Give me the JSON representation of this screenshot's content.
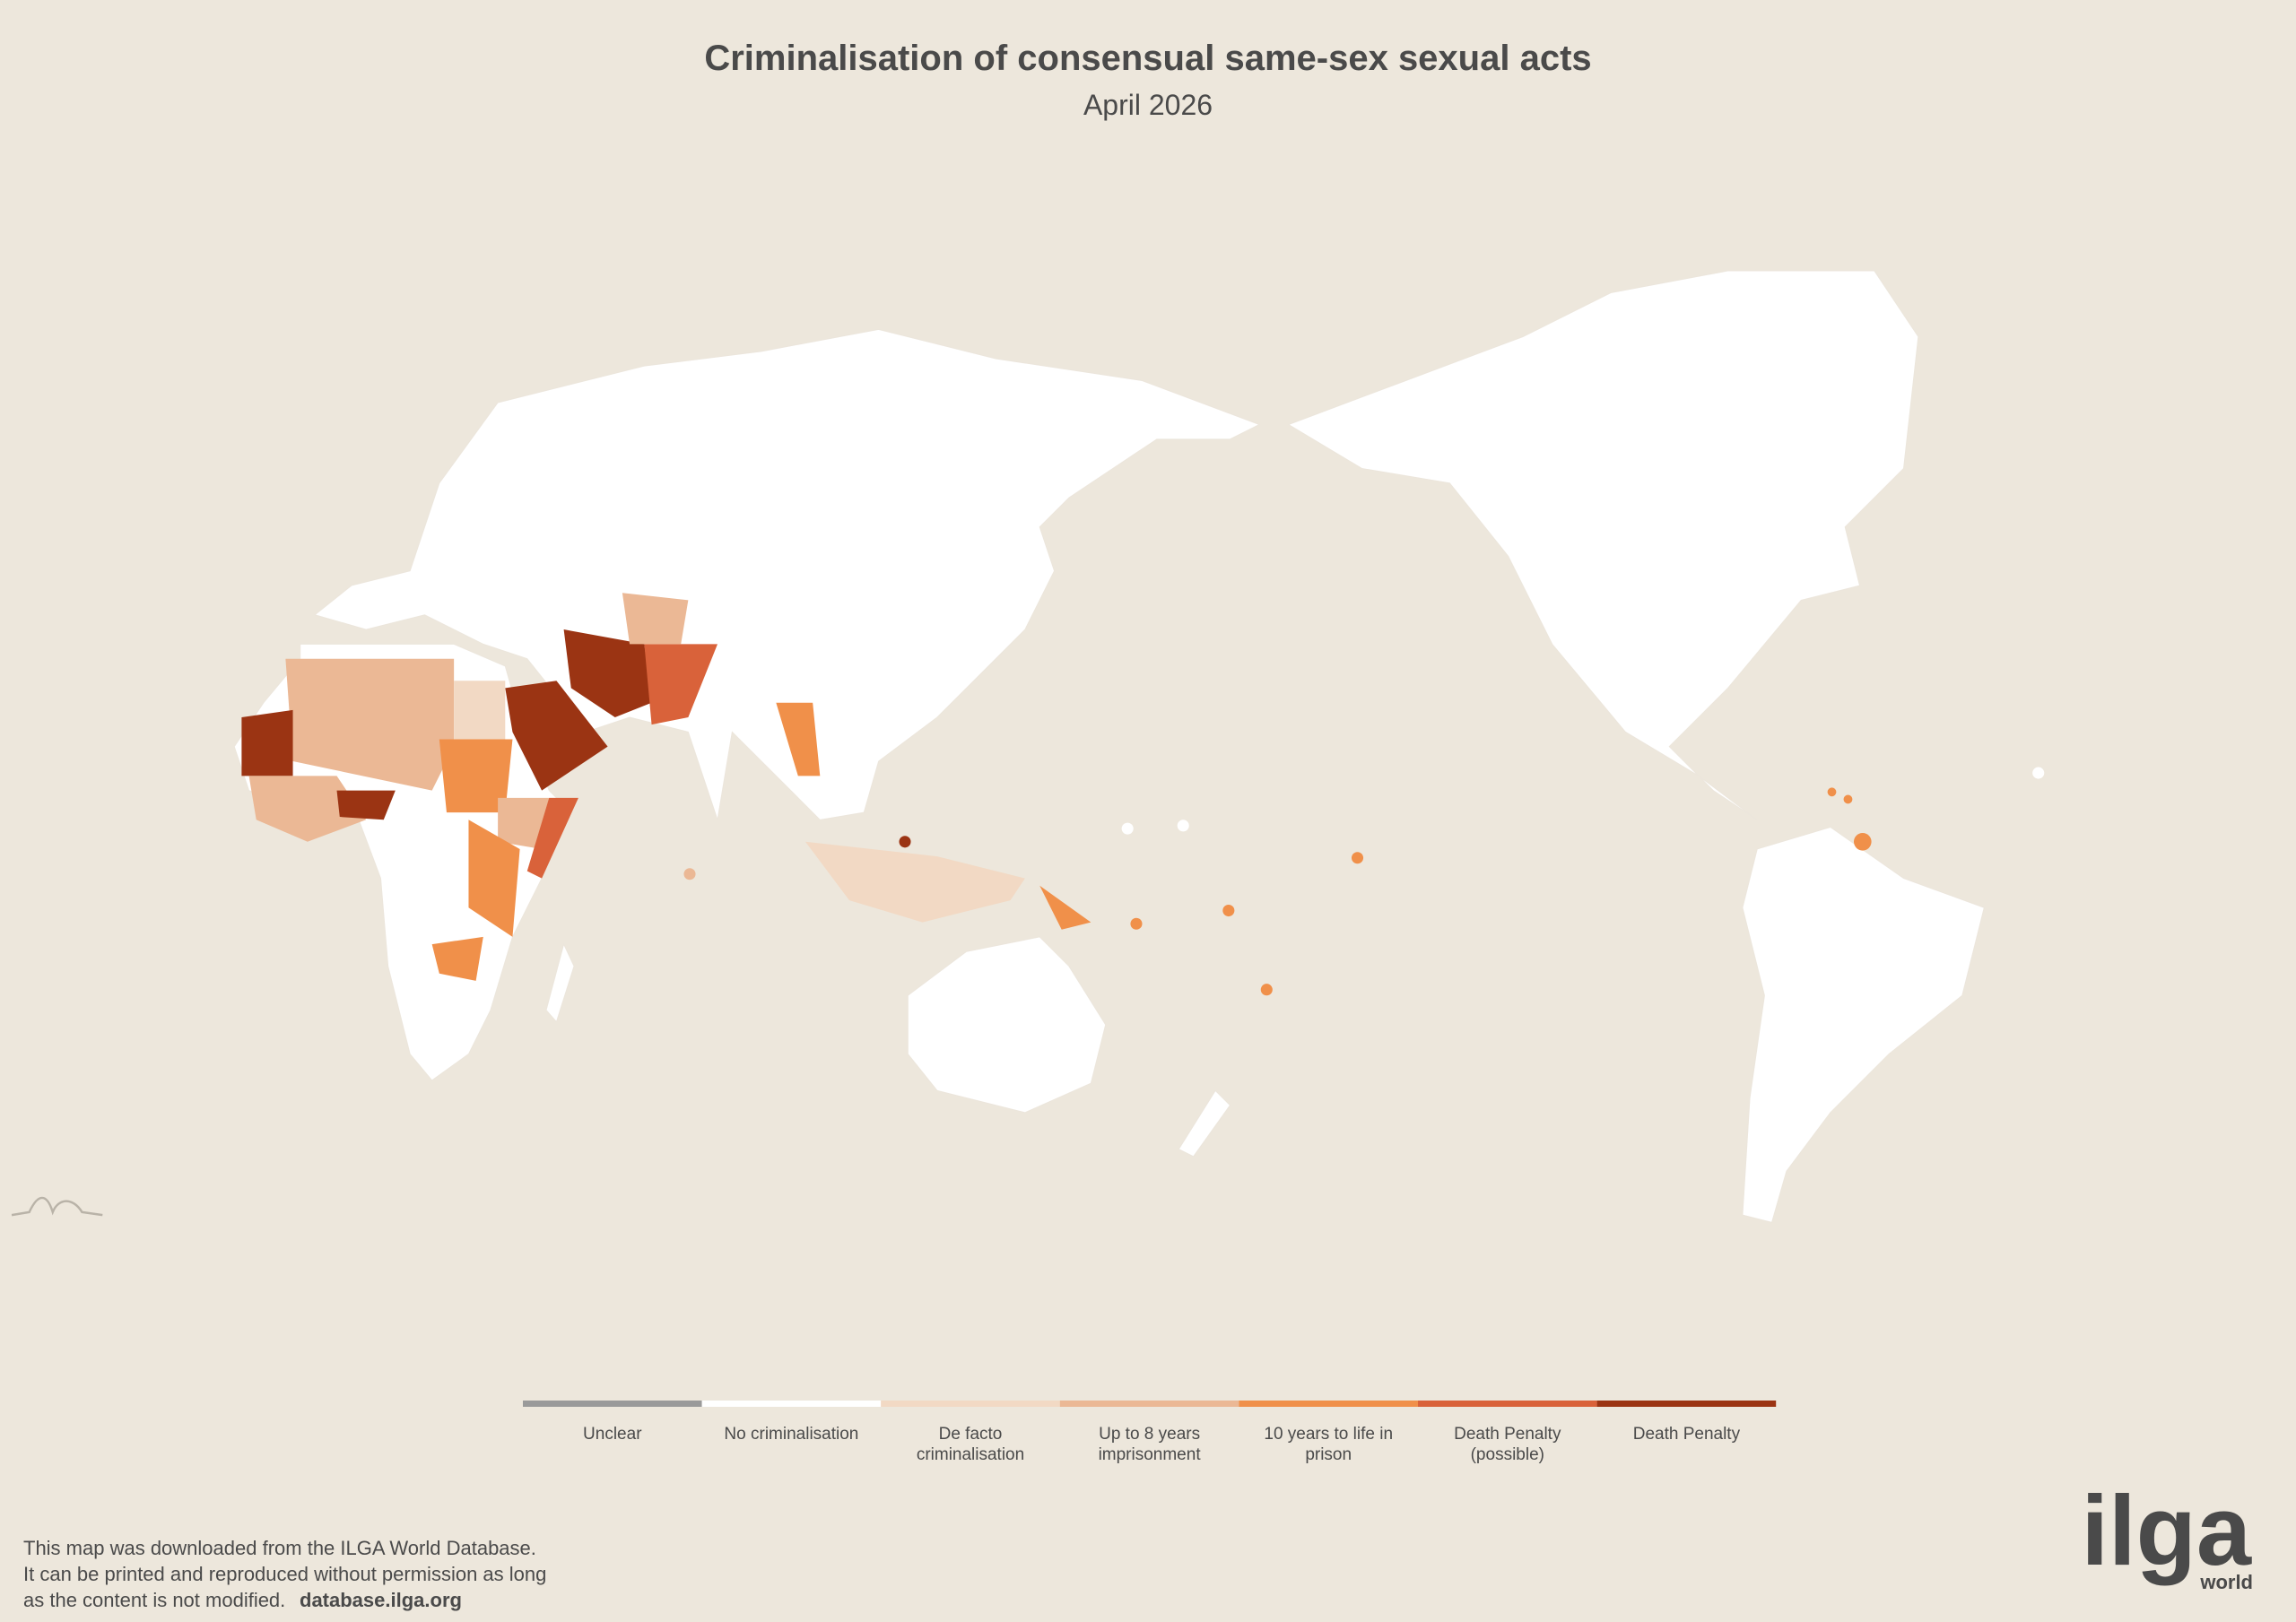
{
  "header": {
    "title": "Criminalisation of consensual same-sex sexual acts",
    "subtitle": "April 2026"
  },
  "legend": {
    "items": [
      {
        "lines": [
          "Unclear"
        ],
        "color": "#9a9a9a"
      },
      {
        "lines": [
          "No criminalisation"
        ],
        "color": "#ffffff"
      },
      {
        "lines": [
          "De facto",
          "criminalisation"
        ],
        "color": "#f2d9c4"
      },
      {
        "lines": [
          "Up to 8 years",
          "imprisonment"
        ],
        "color": "#ebb895"
      },
      {
        "lines": [
          "10 years to life in",
          "prison"
        ],
        "color": "#f0904a"
      },
      {
        "lines": [
          "Death Penalty",
          "(possible)"
        ],
        "color": "#d9623a"
      },
      {
        "lines": [
          "Death Penalty"
        ],
        "color": "#9b3413"
      }
    ]
  },
  "footer": {
    "lines": [
      "This map was downloaded from the ILGA World Database.",
      "It can be printed and reproduced without permission as long",
      "as the content is not modified."
    ],
    "link": "database.ilga.org"
  },
  "logo": {
    "name": "ilga",
    "tagline": "world"
  }
}
